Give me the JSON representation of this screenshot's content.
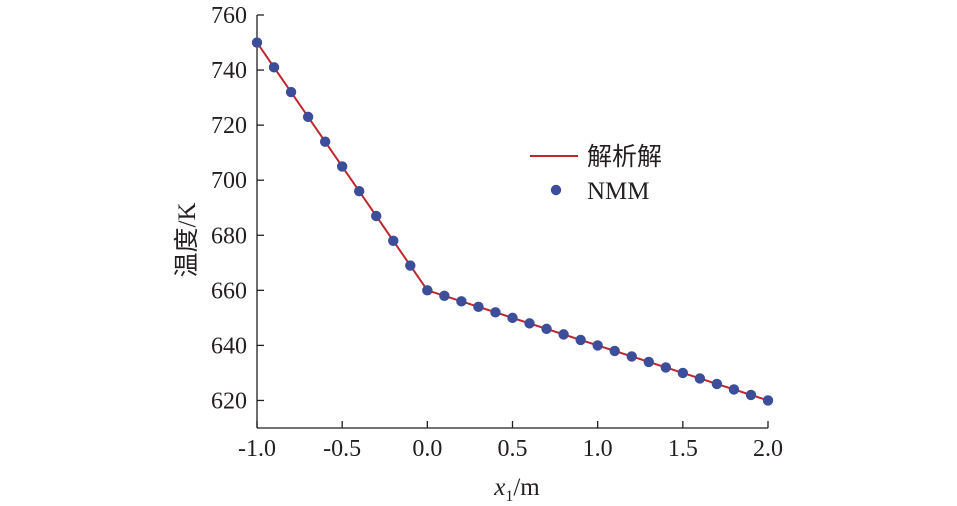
{
  "chart_data": {
    "type": "line",
    "title": "",
    "xlabel_main": "x",
    "xlabel_sub": "1",
    "xlabel_unit": "/m",
    "ylabel": "温度/K",
    "xlim": [
      -1.0,
      2.0
    ],
    "ylim": [
      610,
      760
    ],
    "xticks": [
      -1.0,
      -0.5,
      0.0,
      0.5,
      1.0,
      1.5,
      2.0
    ],
    "xtick_labels": [
      "-1.0",
      "-0.5",
      "0.0",
      "0.5",
      "1.0",
      "1.5",
      "2.0"
    ],
    "yticks": [
      620,
      640,
      660,
      680,
      700,
      720,
      740,
      760
    ],
    "ytick_labels": [
      "620",
      "640",
      "660",
      "680",
      "700",
      "720",
      "740",
      "760"
    ],
    "grid": false,
    "legend_position": "center-right",
    "series": [
      {
        "name": "解析解",
        "kind": "line",
        "color": "#c0262e",
        "x": [
          -1.0,
          0.0,
          2.0
        ],
        "y": [
          750,
          660,
          620
        ]
      },
      {
        "name": "NMM",
        "kind": "scatter",
        "color": "#3c4d9a",
        "x": [
          -1.0,
          -0.9,
          -0.8,
          -0.7,
          -0.6,
          -0.5,
          -0.4,
          -0.3,
          -0.2,
          -0.1,
          0.0,
          0.1,
          0.2,
          0.3,
          0.4,
          0.5,
          0.6,
          0.7,
          0.8,
          0.9,
          1.0,
          1.1,
          1.2,
          1.3,
          1.4,
          1.5,
          1.6,
          1.7,
          1.8,
          1.9,
          2.0
        ],
        "y": [
          750,
          741,
          732,
          723,
          714,
          705,
          696,
          687,
          678,
          669,
          660,
          658,
          656,
          654,
          652,
          650,
          648,
          646,
          644,
          642,
          640,
          638,
          636,
          634,
          632,
          630,
          628,
          626,
          624,
          622,
          620
        ]
      }
    ]
  }
}
